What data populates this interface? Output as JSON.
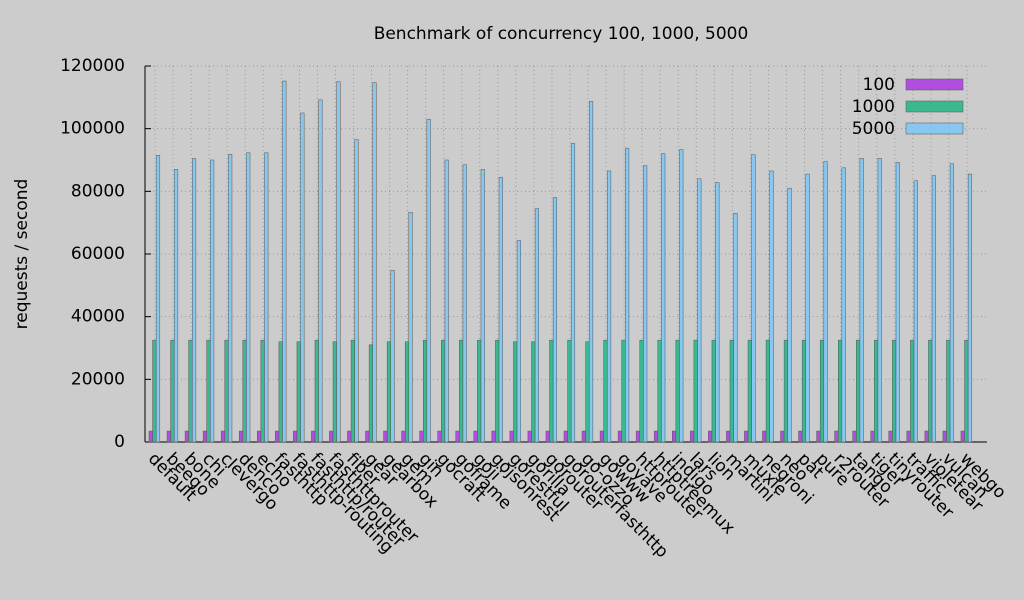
{
  "chart_data": {
    "type": "bar",
    "title": "Benchmark of concurrency 100, 1000, 5000",
    "y_label": "requests / second",
    "categories": [
      "default",
      "beego",
      "bone",
      "chi",
      "clevergo",
      "denco",
      "echo",
      "fasthttp",
      "fasthttp-routing",
      "fasthttp/router",
      "fasthttprouter",
      "fiber",
      "gear",
      "gearbox",
      "gem",
      "gin",
      "gocraft",
      "goframe",
      "goji",
      "gojsonrest",
      "gorestful",
      "gorilla",
      "gorouter",
      "gorouterfasthttp",
      "go-ozzo",
      "gowww",
      "goyave",
      "httprouter",
      "httptreemux",
      "indigo",
      "lars",
      "lion",
      "martini",
      "muxie",
      "negroni",
      "neo",
      "pat",
      "pure",
      "r2router",
      "tango",
      "tiger",
      "tinyrouter",
      "traffic",
      "violetear",
      "vulcan",
      "webgo"
    ],
    "series": [
      {
        "name": "100",
        "color": "#b04ee0",
        "values": [
          3500,
          3500,
          3500,
          3500,
          3500,
          3500,
          3500,
          3500,
          3500,
          3500,
          3500,
          3500,
          3500,
          3500,
          3500,
          3500,
          3500,
          3500,
          3500,
          3500,
          3500,
          3500,
          3500,
          3500,
          3500,
          3500,
          3500,
          3500,
          3500,
          3500,
          3500,
          3500,
          3500,
          3500,
          3500,
          3500,
          3500,
          3500,
          3500,
          3500,
          3500,
          3500,
          3500,
          3500,
          3500,
          3500
        ]
      },
      {
        "name": "1000",
        "color": "#3cb890",
        "values": [
          32500,
          32500,
          32500,
          32500,
          32500,
          32500,
          32500,
          32000,
          32000,
          32500,
          32000,
          32500,
          31000,
          32000,
          32000,
          32500,
          32500,
          32500,
          32500,
          32500,
          32000,
          32000,
          32500,
          32500,
          32000,
          32500,
          32500,
          32500,
          32500,
          32500,
          32500,
          32500,
          32500,
          32500,
          32500,
          32500,
          32500,
          32500,
          32500,
          32500,
          32500,
          32500,
          32500,
          32500,
          32500,
          32500
        ]
      },
      {
        "name": "5000",
        "color": "#88c8f0",
        "values": [
          91500,
          87000,
          90500,
          90000,
          91800,
          92300,
          92300,
          115200,
          105000,
          109200,
          115000,
          96500,
          114700,
          54800,
          73300,
          103000,
          90000,
          88500,
          87000,
          84500,
          64300,
          74500,
          78000,
          95300,
          108700,
          86500,
          93800,
          88200,
          92000,
          93300,
          84000,
          82800,
          73000,
          91700,
          86500,
          81000,
          85500,
          89500,
          87500,
          90500,
          90500,
          89200,
          83400,
          85000,
          88800,
          85500
        ]
      }
    ],
    "ylim": [
      0,
      120000
    ],
    "yticks": [
      0,
      20000,
      40000,
      60000,
      80000,
      100000,
      120000
    ],
    "grid": true,
    "legend": "top-right"
  }
}
